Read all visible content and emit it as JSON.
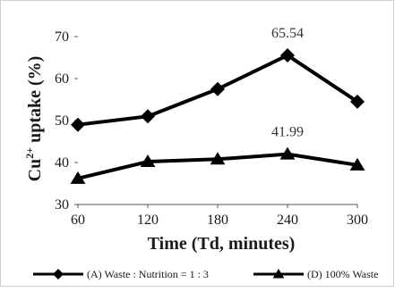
{
  "chart_data": {
    "type": "line",
    "x": [
      60,
      120,
      180,
      240,
      300
    ],
    "xlabel": "Time (Td, minutes)",
    "ylabel": "uptake (%)",
    "ylabel_ion": "Cu",
    "ylabel_ion_charge": "2+",
    "xlim": [
      60,
      300
    ],
    "ylim": [
      30,
      70
    ],
    "y_ticks": [
      30,
      40,
      50,
      60,
      70
    ],
    "x_ticks": [
      60,
      120,
      180,
      240,
      300
    ],
    "grid": false,
    "legend_position": "bottom",
    "series": [
      {
        "name": "(A) Waste : Nutrition = 1 : 3",
        "marker": "diamond",
        "color": "#000000",
        "values": [
          49.0,
          51.0,
          57.5,
          65.54,
          54.5
        ]
      },
      {
        "name": "(D) 100% Waste",
        "marker": "triangle",
        "color": "#000000",
        "values": [
          36.2,
          40.2,
          40.8,
          41.99,
          39.4
        ]
      }
    ],
    "annotations": [
      {
        "text": "65.54",
        "series": 0,
        "x": 240
      },
      {
        "text": "41.99",
        "series": 1,
        "x": 240
      }
    ]
  }
}
